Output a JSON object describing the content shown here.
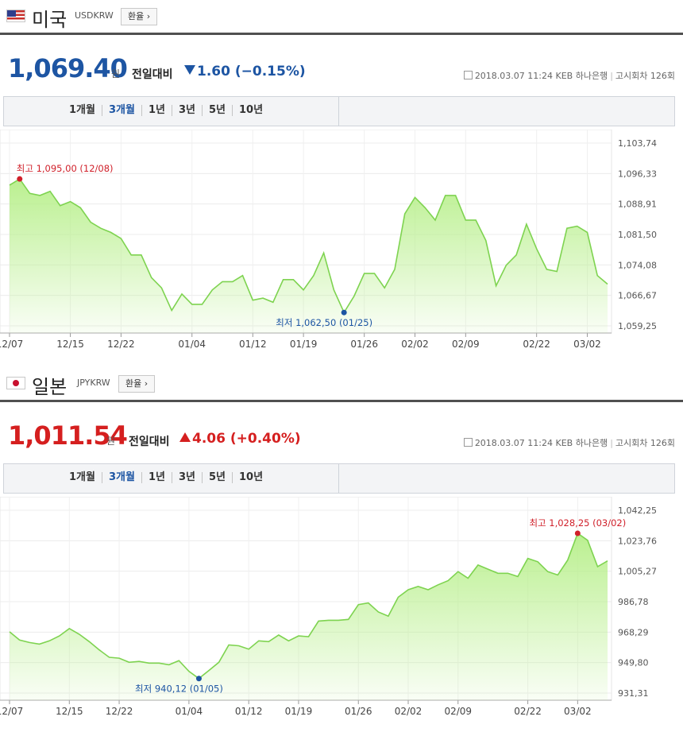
{
  "charts": [
    {
      "id": "us",
      "country": "미국",
      "code": "USDKRW",
      "rate_button": "환율",
      "price": "1,069.40",
      "unit": "원",
      "compare_label": "전일대비",
      "change": "1.60 (−0.15%)",
      "direction": "down",
      "datetime": "2018.03.07 11:24",
      "bank": "KEB 하나은행",
      "notice": "고시회차 126회",
      "periods": [
        "1개월",
        "3개월",
        "1년",
        "3년",
        "5년",
        "10년"
      ],
      "active_period": "3개월",
      "colors": {
        "accent": "#1d55a3",
        "line": "#7ed350",
        "fill_top": "#b7ef8a",
        "high": "#d0202a",
        "low": "#1d55a3"
      }
    },
    {
      "id": "jp",
      "country": "일본",
      "code": "JPYKRW",
      "rate_button": "환율",
      "price": "1,011.54",
      "unit": "원",
      "compare_label": "전일대비",
      "change": "4.06 (+0.40%)",
      "direction": "up",
      "datetime": "2018.03.07 11:24",
      "bank": "KEB 하나은행",
      "notice": "고시회차 126회",
      "periods": [
        "1개월",
        "3개월",
        "1년",
        "3년",
        "5년",
        "10년"
      ],
      "active_period": "3개월",
      "colors": {
        "accent": "#d51f1f",
        "line": "#7ed350",
        "fill_top": "#b7ef8a",
        "high": "#d0202a",
        "low": "#1d55a3"
      }
    }
  ],
  "chart_data": [
    {
      "type": "area",
      "xlabel": "",
      "ylabel": "",
      "x_ticks": [
        "12/07",
        "12/15",
        "12/22",
        "01/04",
        "01/12",
        "01/19",
        "01/26",
        "02/02",
        "02/09",
        "02/22",
        "03/02"
      ],
      "x_tick_index": [
        0,
        6,
        11,
        18,
        24,
        29,
        35,
        40,
        45,
        52,
        57
      ],
      "y_ticks": [
        "1,103,74",
        "1,096,33",
        "1,088,91",
        "1,081,50",
        "1,074,08",
        "1,066,67",
        "1,059,25"
      ],
      "ylim": [
        1059.25,
        1103.74
      ],
      "grid": true,
      "values": [
        1093.5,
        1095.0,
        1091.5,
        1091.0,
        1092.0,
        1088.5,
        1089.5,
        1088.0,
        1084.5,
        1083.0,
        1082.0,
        1080.5,
        1076.5,
        1076.5,
        1071.0,
        1068.5,
        1063.0,
        1067.0,
        1064.5,
        1064.5,
        1068.0,
        1070.0,
        1070.0,
        1071.5,
        1065.5,
        1066.0,
        1065.0,
        1070.5,
        1070.5,
        1068.0,
        1071.5,
        1077.0,
        1068.0,
        1062.5,
        1066.5,
        1072.0,
        1072.0,
        1068.5,
        1073.0,
        1086.5,
        1090.5,
        1088.0,
        1085.0,
        1091.0,
        1091.0,
        1085.0,
        1085.0,
        1080.0,
        1069.0,
        1074.0,
        1076.5,
        1084.0,
        1078.0,
        1073.0,
        1072.5,
        1083.0,
        1083.5,
        1082.0,
        1071.5,
        1069.4
      ],
      "high": {
        "index": 1,
        "value": 1095.0,
        "label": "최고 1,095,00 (12/08)"
      },
      "low": {
        "index": 33,
        "value": 1062.5,
        "label": "최저 1,062,50 (01/25)"
      }
    },
    {
      "type": "area",
      "xlabel": "",
      "ylabel": "",
      "x_ticks": [
        "12/07",
        "12/15",
        "12/22",
        "01/04",
        "01/12",
        "01/19",
        "01/26",
        "02/02",
        "02/09",
        "02/22",
        "03/02"
      ],
      "x_tick_index": [
        0,
        6,
        11,
        18,
        24,
        29,
        35,
        40,
        45,
        52,
        57
      ],
      "y_ticks": [
        "1,042,25",
        "1,023,76",
        "1,005,27",
        "986,78",
        "968,29",
        "949,80",
        "931,31"
      ],
      "ylim": [
        931.31,
        1042.25
      ],
      "grid": true,
      "values": [
        968.5,
        963.5,
        962.0,
        961.0,
        963.0,
        966.0,
        970.5,
        967.0,
        962.5,
        957.5,
        953.0,
        952.5,
        950.0,
        950.5,
        949.5,
        949.5,
        948.5,
        951.0,
        944.5,
        940.12,
        945.0,
        950.0,
        960.5,
        960.0,
        958.0,
        963.0,
        962.5,
        966.5,
        963.0,
        966.0,
        965.5,
        975.0,
        975.5,
        975.5,
        976.0,
        985.0,
        986.0,
        980.5,
        978.0,
        989.5,
        994.0,
        996.0,
        994.0,
        997.0,
        999.5,
        1005.0,
        1001.0,
        1009.0,
        1006.5,
        1004.0,
        1004.0,
        1002.0,
        1013.0,
        1011.0,
        1005.0,
        1003.0,
        1012.0,
        1028.25,
        1024.0,
        1008.0,
        1011.54
      ],
      "high": {
        "index": 57,
        "value": 1028.25,
        "label": "최고 1,028,25 (03/02)"
      },
      "low": {
        "index": 19,
        "value": 940.12,
        "label": "최저 940,12 (01/05)"
      }
    }
  ]
}
